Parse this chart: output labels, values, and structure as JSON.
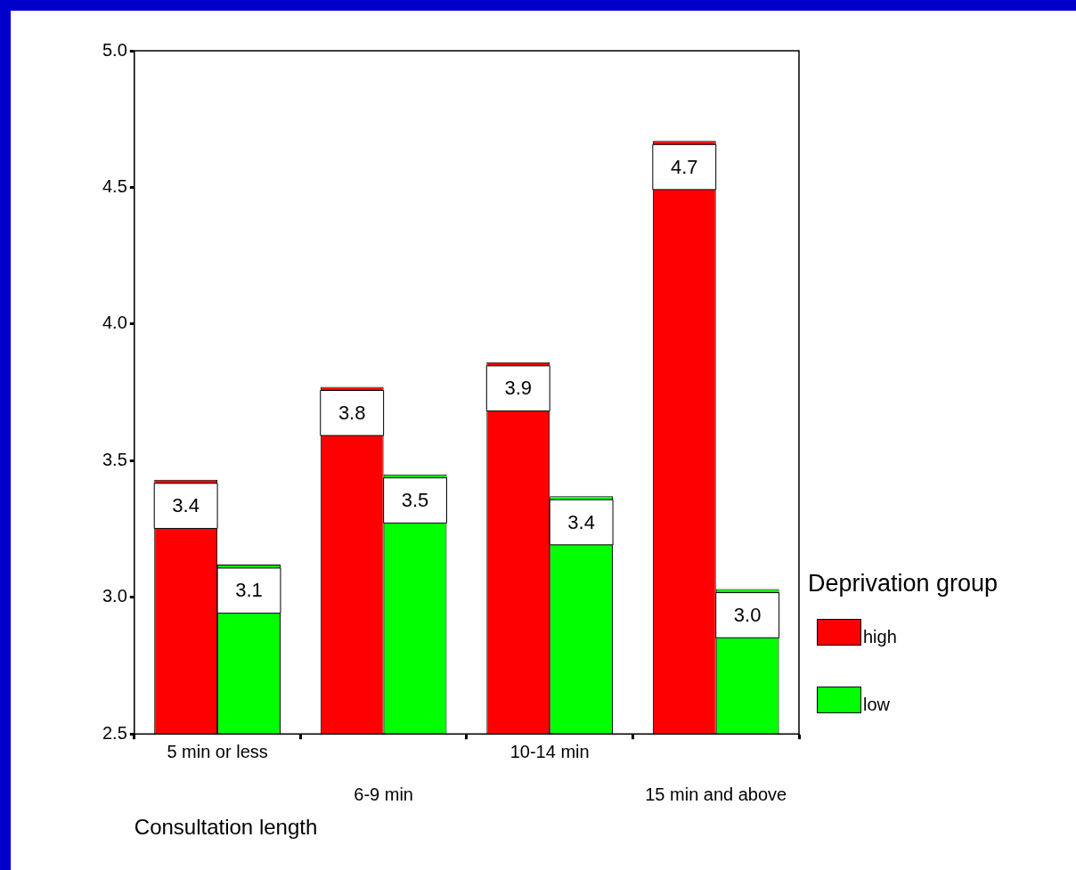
{
  "chart_data": {
    "type": "bar",
    "xlabel": "Consultation length",
    "legend_title": "Deprivation group",
    "categories": [
      "5 min or less",
      "6-9 min",
      "10-14 min",
      "15 min and above"
    ],
    "series": [
      {
        "name": "high",
        "color": "#ff0000",
        "values": [
          3.43,
          3.77,
          3.86,
          4.67
        ],
        "value_labels": [
          "3.4",
          "3.8",
          "3.9",
          "4.7"
        ]
      },
      {
        "name": "low",
        "color": "#00ff00",
        "values": [
          3.12,
          3.45,
          3.37,
          3.03
        ],
        "value_labels": [
          "3.1",
          "3.5",
          "3.4",
          "3.0"
        ]
      }
    ],
    "ylim": [
      2.5,
      5.0
    ],
    "yticks": [
      {
        "value": 2.5,
        "label": "2.5"
      },
      {
        "value": 3,
        "label": "3.0"
      },
      {
        "value": 3.5,
        "label": "3.5"
      },
      {
        "value": 4,
        "label": "4.0"
      },
      {
        "value": 4.5,
        "label": "4.5"
      },
      {
        "value": 5,
        "label": "5.0"
      }
    ],
    "legend": "right",
    "grid": false
  }
}
